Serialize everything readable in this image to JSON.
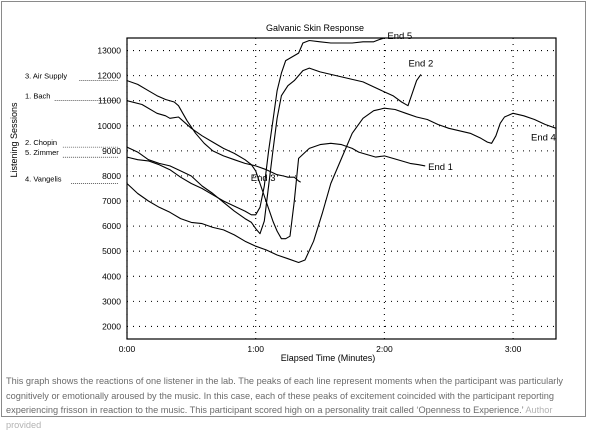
{
  "chart_data": {
    "type": "line",
    "title": "Galvanic Skin Response",
    "xlabel": "Elapsed Time (Minutes)",
    "ylabel": "Listening Sessions",
    "xlim": [
      0,
      200
    ],
    "ylim": [
      1500,
      13500
    ],
    "x_ticks": [
      {
        "value": 0,
        "label": "0:00"
      },
      {
        "value": 60,
        "label": "1:00"
      },
      {
        "value": 120,
        "label": "2:00"
      },
      {
        "value": 180,
        "label": "3:00"
      }
    ],
    "y_ticks": [
      2000,
      3000,
      4000,
      5000,
      6000,
      7000,
      8000,
      9000,
      10000,
      11000,
      12000,
      13000
    ],
    "grid": "dotted",
    "series": [
      {
        "name": "1. Bach",
        "label_value": 11000,
        "end_label": "End 1",
        "points": [
          [
            0,
            11000
          ],
          [
            7,
            10850
          ],
          [
            14,
            10500
          ],
          [
            18,
            10400
          ],
          [
            20,
            10300
          ],
          [
            24,
            10350
          ],
          [
            26,
            10200
          ],
          [
            30,
            9900
          ],
          [
            35,
            9600
          ],
          [
            40,
            9350
          ],
          [
            45,
            9100
          ],
          [
            50,
            8900
          ],
          [
            55,
            8650
          ],
          [
            58,
            8450
          ],
          [
            60,
            8200
          ],
          [
            62,
            7700
          ],
          [
            64,
            7200
          ],
          [
            66,
            6700
          ],
          [
            68,
            6200
          ],
          [
            70,
            5800
          ],
          [
            72,
            5500
          ],
          [
            74,
            5500
          ],
          [
            76,
            5600
          ],
          [
            78,
            7000
          ],
          [
            80,
            8700
          ],
          [
            85,
            9100
          ],
          [
            90,
            9250
          ],
          [
            95,
            9300
          ],
          [
            100,
            9250
          ],
          [
            105,
            9100
          ],
          [
            108,
            8950
          ],
          [
            112,
            8850
          ],
          [
            116,
            8750
          ],
          [
            120,
            8800
          ],
          [
            124,
            8700
          ],
          [
            128,
            8600
          ],
          [
            132,
            8500
          ],
          [
            136,
            8450
          ],
          [
            139,
            8400
          ]
        ]
      },
      {
        "name": "2. Chopin",
        "label_value": 9150,
        "end_label": "End 2",
        "points": [
          [
            0,
            9150
          ],
          [
            5,
            8950
          ],
          [
            10,
            8650
          ],
          [
            15,
            8500
          ],
          [
            20,
            8400
          ],
          [
            25,
            8200
          ],
          [
            30,
            8000
          ],
          [
            35,
            7600
          ],
          [
            40,
            7300
          ],
          [
            45,
            6950
          ],
          [
            50,
            6600
          ],
          [
            55,
            6300
          ],
          [
            58,
            6150
          ],
          [
            60,
            5900
          ],
          [
            62,
            5700
          ],
          [
            64,
            6200
          ],
          [
            66,
            7600
          ],
          [
            68,
            9000
          ],
          [
            70,
            10300
          ],
          [
            72,
            11200
          ],
          [
            75,
            11600
          ],
          [
            78,
            11800
          ],
          [
            82,
            12200
          ],
          [
            85,
            12300
          ],
          [
            90,
            12150
          ],
          [
            95,
            12050
          ],
          [
            100,
            11950
          ],
          [
            105,
            11850
          ],
          [
            110,
            11750
          ],
          [
            115,
            11550
          ],
          [
            120,
            11350
          ],
          [
            124,
            11200
          ],
          [
            128,
            10950
          ],
          [
            131,
            10800
          ],
          [
            133,
            11300
          ],
          [
            135,
            11800
          ],
          [
            137,
            12050
          ]
        ]
      },
      {
        "name": "3. Air Supply",
        "label_value": 11800,
        "end_label": "End 3",
        "points": [
          [
            0,
            11800
          ],
          [
            5,
            11650
          ],
          [
            10,
            11400
          ],
          [
            14,
            11200
          ],
          [
            18,
            11050
          ],
          [
            22,
            10950
          ],
          [
            24,
            10800
          ],
          [
            26,
            10500
          ],
          [
            28,
            10200
          ],
          [
            32,
            9700
          ],
          [
            36,
            9300
          ],
          [
            40,
            9000
          ],
          [
            45,
            8800
          ],
          [
            50,
            8650
          ],
          [
            55,
            8500
          ],
          [
            60,
            8400
          ],
          [
            65,
            8250
          ],
          [
            70,
            8050
          ],
          [
            73,
            8000
          ],
          [
            75,
            7950
          ],
          [
            78,
            7950
          ],
          [
            80,
            7800
          ],
          [
            81,
            7750
          ]
        ]
      },
      {
        "name": "4. Vangelis",
        "label_value": 7700,
        "end_label": "End 4",
        "points": [
          [
            0,
            7700
          ],
          [
            5,
            7300
          ],
          [
            10,
            7000
          ],
          [
            15,
            6750
          ],
          [
            20,
            6550
          ],
          [
            25,
            6300
          ],
          [
            30,
            6150
          ],
          [
            35,
            6100
          ],
          [
            40,
            5950
          ],
          [
            45,
            5850
          ],
          [
            50,
            5650
          ],
          [
            55,
            5400
          ],
          [
            60,
            5200
          ],
          [
            65,
            5050
          ],
          [
            70,
            4850
          ],
          [
            75,
            4700
          ],
          [
            80,
            4550
          ],
          [
            83,
            4650
          ],
          [
            87,
            5400
          ],
          [
            91,
            6500
          ],
          [
            95,
            7700
          ],
          [
            100,
            8700
          ],
          [
            105,
            9700
          ],
          [
            110,
            10300
          ],
          [
            115,
            10600
          ],
          [
            120,
            10700
          ],
          [
            125,
            10650
          ],
          [
            130,
            10500
          ],
          [
            135,
            10350
          ],
          [
            140,
            10250
          ],
          [
            145,
            10050
          ],
          [
            150,
            9900
          ],
          [
            155,
            9800
          ],
          [
            160,
            9700
          ],
          [
            165,
            9500
          ],
          [
            168,
            9350
          ],
          [
            170,
            9300
          ],
          [
            172,
            9600
          ],
          [
            174,
            10100
          ],
          [
            176,
            10350
          ],
          [
            180,
            10500
          ],
          [
            185,
            10400
          ],
          [
            190,
            10250
          ],
          [
            195,
            10050
          ],
          [
            200,
            9900
          ]
        ]
      },
      {
        "name": "5. Zimmer",
        "label_value": 8750,
        "end_label": "End 5",
        "points": [
          [
            0,
            8750
          ],
          [
            5,
            8650
          ],
          [
            10,
            8600
          ],
          [
            15,
            8450
          ],
          [
            20,
            8250
          ],
          [
            25,
            7950
          ],
          [
            30,
            7700
          ],
          [
            35,
            7500
          ],
          [
            40,
            7250
          ],
          [
            45,
            7000
          ],
          [
            50,
            6800
          ],
          [
            55,
            6600
          ],
          [
            58,
            6450
          ],
          [
            60,
            6450
          ],
          [
            62,
            6750
          ],
          [
            64,
            7600
          ],
          [
            66,
            9000
          ],
          [
            68,
            10200
          ],
          [
            70,
            11400
          ],
          [
            72,
            12100
          ],
          [
            74,
            12600
          ],
          [
            76,
            12700
          ],
          [
            78,
            12800
          ],
          [
            80,
            12900
          ],
          [
            82,
            13300
          ],
          [
            85,
            13400
          ],
          [
            90,
            13350
          ],
          [
            95,
            13300
          ],
          [
            100,
            13300
          ],
          [
            105,
            13300
          ],
          [
            110,
            13350
          ],
          [
            115,
            13350
          ],
          [
            118,
            13450
          ],
          [
            120,
            13500
          ]
        ]
      }
    ]
  },
  "caption": {
    "text": "This graph shows the reactions of one listener in the lab. The peaks of each line represent moments when the participant was particularly cognitively or emotionally aroused by the music. In this case, each of these peaks of excitement coincided with the participant reporting experiencing frisson in reaction to the music. This participant scored high on a personality trait called ‘Openness to Experience.’",
    "credit": "Author provided"
  }
}
